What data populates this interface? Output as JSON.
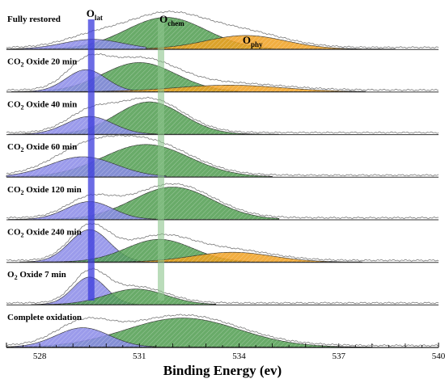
{
  "chart_data": {
    "type": "area",
    "xlabel": "Binding Energy (ev)",
    "xlim": [
      527,
      540
    ],
    "xticks": [
      528,
      531,
      534,
      537,
      540
    ],
    "peak_labels": [
      {
        "main": "O",
        "sub": "lat",
        "x": 529.6
      },
      {
        "main": "O",
        "sub": "chem",
        "x": 531.8
      },
      {
        "main": "O",
        "sub": "phy",
        "x": 534.3
      }
    ],
    "panels": [
      {
        "label_main": "Fully restored",
        "label_sub": "",
        "label_rest": "",
        "peaks": [
          {
            "component": "O_lat",
            "center": 529.6,
            "width": 0.9,
            "height": 0.3,
            "end": 531.2
          },
          {
            "component": "O_chem",
            "center": 531.8,
            "width": 1.2,
            "height": 0.98,
            "end": 535.0
          },
          {
            "component": "O_phy",
            "center": 534.2,
            "width": 1.2,
            "height": 0.42,
            "end": 538.7
          }
        ]
      },
      {
        "label_main": "CO",
        "label_sub": "2",
        "label_rest": "  Oxide 20 min",
        "peaks": [
          {
            "component": "O_lat",
            "center": 529.4,
            "width": 0.6,
            "height": 0.68,
            "end": 530.8
          },
          {
            "component": "O_chem",
            "center": 531.0,
            "width": 1.1,
            "height": 0.9,
            "end": 534.0
          },
          {
            "component": "O_phy",
            "center": 533.7,
            "width": 1.6,
            "height": 0.2,
            "end": 537.8
          }
        ]
      },
      {
        "label_main": "CO",
        "label_sub": "2",
        "label_rest": " Oxide 40 min",
        "peaks": [
          {
            "component": "O_lat",
            "center": 529.5,
            "width": 0.7,
            "height": 0.55,
            "end": 531.5
          },
          {
            "component": "O_chem",
            "center": 531.3,
            "width": 1.0,
            "height": 1.0,
            "end": 535.2
          }
        ]
      },
      {
        "label_main": "CO",
        "label_sub": "2",
        "label_rest": " Oxide 60 min",
        "peaks": [
          {
            "component": "O_lat",
            "center": 529.3,
            "width": 1.0,
            "height": 0.62,
            "end": 531.8
          },
          {
            "component": "O_chem",
            "center": 531.2,
            "width": 1.3,
            "height": 1.0,
            "end": 535.0
          }
        ]
      },
      {
        "label_main": "CO",
        "label_sub": "2",
        "label_rest": " Oxide 120 min",
        "peaks": [
          {
            "component": "O_lat",
            "center": 529.5,
            "width": 0.7,
            "height": 0.55,
            "end": 531.5
          },
          {
            "component": "O_chem",
            "center": 532.0,
            "width": 1.2,
            "height": 1.0,
            "end": 535.2
          }
        ]
      },
      {
        "label_main": "CO",
        "label_sub": "2",
        "label_rest": " Oxide 240 min",
        "peaks": [
          {
            "component": "O_lat",
            "center": 529.5,
            "width": 0.6,
            "height": 1.0,
            "end": 531.0
          },
          {
            "component": "O_chem",
            "center": 531.6,
            "width": 1.0,
            "height": 0.7,
            "end": 534.3
          },
          {
            "component": "O_phy",
            "center": 533.8,
            "width": 1.2,
            "height": 0.3,
            "end": 537.7
          }
        ]
      },
      {
        "label_main": "O",
        "label_sub": "2",
        "label_rest": " Oxide 7 min",
        "peaks": [
          {
            "component": "O_lat",
            "center": 529.5,
            "width": 0.5,
            "height": 0.85,
            "end": 530.9
          },
          {
            "component": "O_chem",
            "center": 530.9,
            "width": 0.9,
            "height": 0.48,
            "end": 533.3
          }
        ]
      },
      {
        "label_main": "Complete oxidation",
        "label_sub": "",
        "label_rest": "",
        "peaks": [
          {
            "component": "O_lat",
            "center": 529.3,
            "width": 0.8,
            "height": 0.6,
            "end": 531.5
          },
          {
            "component": "O_chem",
            "center": 532.3,
            "width": 1.7,
            "height": 0.9,
            "end": 538.0
          }
        ]
      }
    ],
    "guide_lines": [
      {
        "x": 529.55,
        "color": "#3b3bdc"
      },
      {
        "x": 531.65,
        "color": "#8cc48c"
      }
    ],
    "colors": {
      "O_lat": "#8a8ae8",
      "O_chem": "#4f9c4f",
      "O_phy": "#f0a020",
      "envelope": "#7a7a7a",
      "baseline": "#555555"
    }
  }
}
